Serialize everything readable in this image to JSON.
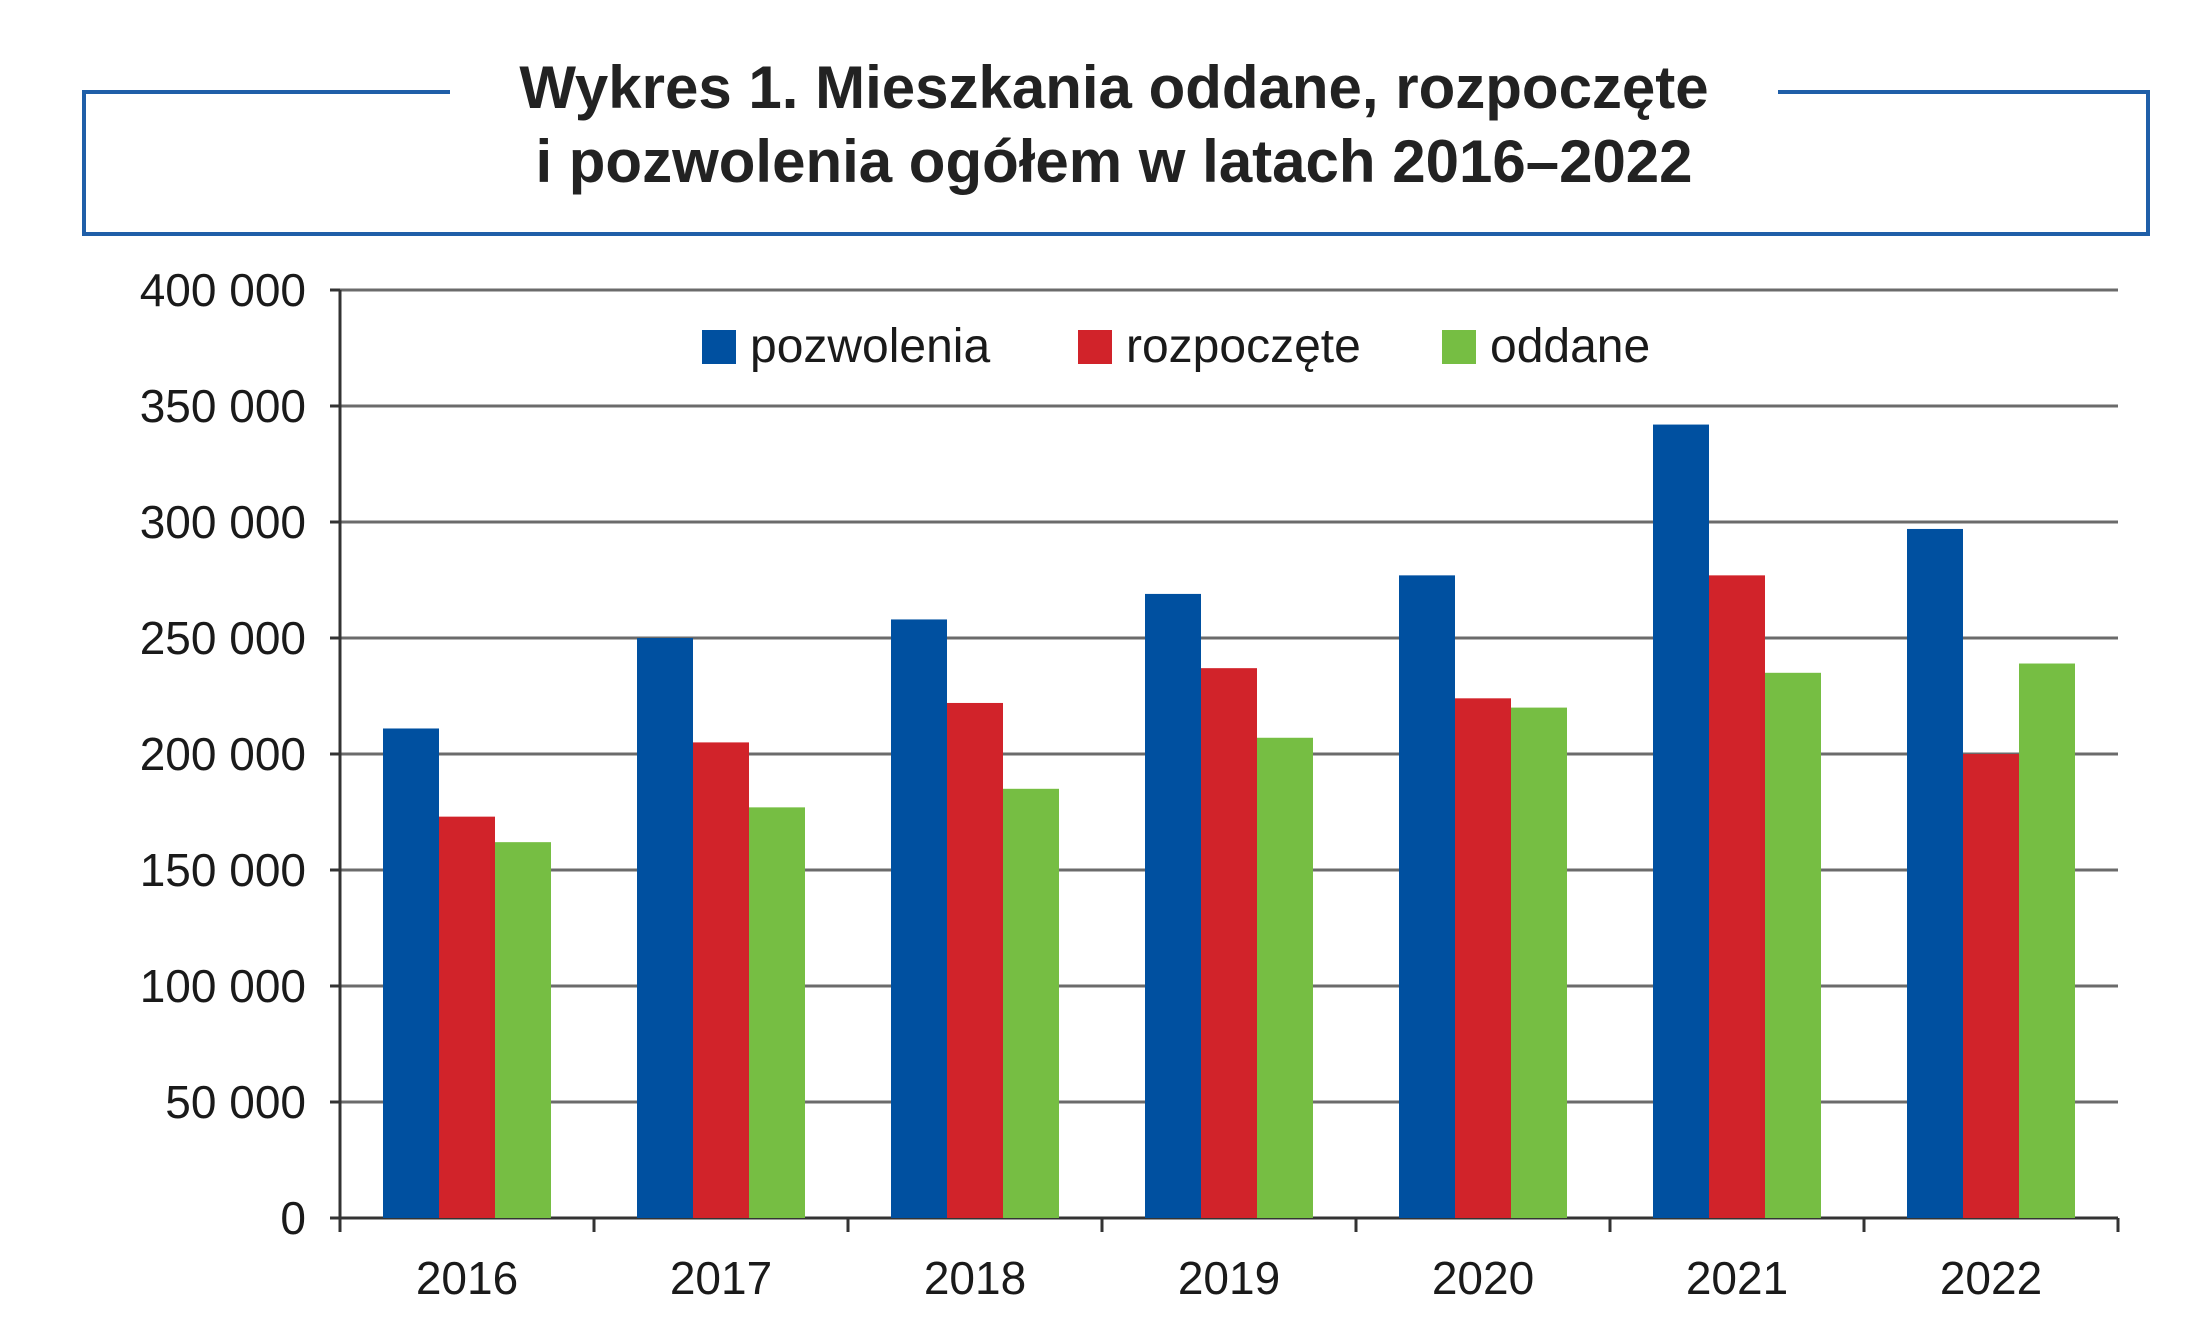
{
  "colors": {
    "frame": "#1f5fa8",
    "title_text": "#222222",
    "axis_text": "#1a1a1a",
    "gridline": "#6b6b6b",
    "axis": "#333333"
  },
  "chart_data": {
    "type": "bar",
    "title_lines": [
      "Wykres 1. Mieszkania oddane, rozpoczęte",
      "i pozwolenia ogółem w latach 2016–2022"
    ],
    "xlabel": "",
    "ylabel": "",
    "categories": [
      "2016",
      "2017",
      "2018",
      "2019",
      "2020",
      "2021",
      "2022"
    ],
    "ylim": [
      0,
      400000
    ],
    "y_ticks": [
      0,
      50000,
      100000,
      150000,
      200000,
      250000,
      300000,
      350000,
      400000
    ],
    "y_tick_labels": [
      "0",
      "50 000",
      "100 000",
      "150 000",
      "200 000",
      "250 000",
      "300 000",
      "350 000",
      "400 000"
    ],
    "grid": true,
    "legend_position": "top-center",
    "series": [
      {
        "name": "pozwolenia",
        "color": "#0050a0",
        "values": [
          211000,
          250000,
          258000,
          269000,
          277000,
          342000,
          297000
        ]
      },
      {
        "name": "rozpoczęte",
        "color": "#d1232a",
        "values": [
          173000,
          205000,
          222000,
          237000,
          224000,
          277000,
          200000
        ]
      },
      {
        "name": "oddane",
        "color": "#76be43",
        "values": [
          162000,
          177000,
          185000,
          207000,
          220000,
          235000,
          239000
        ]
      }
    ]
  }
}
